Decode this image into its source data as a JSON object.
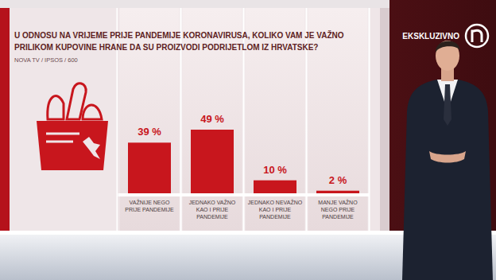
{
  "chart_data": {
    "type": "bar",
    "title": "U ODNOSU NA VRIJEME PRIJE PANDEMIJE KORONAVIRUSA, KOLIKO VAM JE VAŽNO PRILIKOM KUPOVINE HRANE DA SU PROIZVODI PODRIJETLOM IZ HRVATSKE?",
    "subtitle": "NOVA TV / IPSOS / 600",
    "annotations": [
      "EKSKLUZIVNO"
    ],
    "categories": [
      "VAŽNIJE NEGO PRIJE PANDEMIJE",
      "JEDNAKO VAŽNO KAO I PRIJE PANDEMIJE",
      "JEDNAKO NEVAŽNO KAO I PRIJE PANDEMIJE",
      "MANJE VAŽNO NEGO PRIJE PANDEMIJE"
    ],
    "values": [
      39,
      49,
      10,
      2
    ],
    "value_labels": [
      "39 %",
      "49 %",
      "10 %",
      "2 %"
    ],
    "color": "#c8161d",
    "data_labels": true,
    "tick_labels": "x",
    "grid": false
  }
}
